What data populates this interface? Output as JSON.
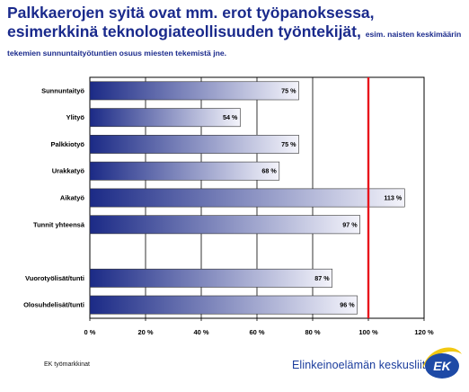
{
  "header": {
    "title_main": "Palkkaerojen syitä ovat mm. erot työpanoksessa, esimerkkinä teknologiateollisuuden työntekijät,",
    "title_sub": "esim. naisten keskimäärin tekemien sunnuntaityötuntien osuus miesten tekemistä jne."
  },
  "footer": {
    "source": "EK työmarkkinat",
    "brand": "Elinkeinoelämän keskusliitto",
    "logo_text": "EK"
  },
  "colors": {
    "title": "#1a2a8c",
    "bar_dark": "#1b2a86",
    "bar_light": "#f4f4fb",
    "reference_line": "#e8141c",
    "brand": "#1a3c9c",
    "logo_yellow": "#f2c811",
    "logo_blue": "#1e4aa6"
  },
  "chart_data": {
    "type": "bar",
    "orientation": "horizontal",
    "categories": [
      "Sunnuntaityö",
      "Ylityö",
      "Palkkiotyö",
      "Urakkatyö",
      "Aikatyö",
      "Tunnit yhteensä",
      "",
      "Vuorotyölisät/tunti",
      "Olosuhdelisät/tunti"
    ],
    "values": [
      75,
      54,
      75,
      68,
      113,
      97,
      null,
      87,
      96
    ],
    "value_labels": [
      "75 %",
      "54 %",
      "75 %",
      "68 %",
      "113 %",
      "97 %",
      "",
      "87 %",
      "96 %"
    ],
    "xlim": [
      0,
      120
    ],
    "xticks": [
      0,
      20,
      40,
      60,
      80,
      100,
      120
    ],
    "xtick_labels": [
      "0 %",
      "20 %",
      "40 %",
      "60 %",
      "80 %",
      "100 %",
      "120 %"
    ],
    "reference_line": 100,
    "grid": "vertical",
    "legend": "none"
  }
}
